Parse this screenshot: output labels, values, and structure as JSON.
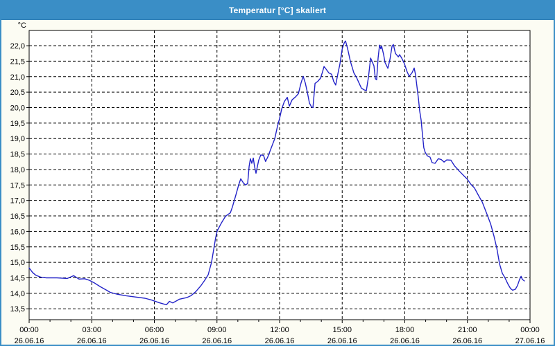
{
  "window": {
    "title": "Temperatur [°C] skaliert"
  },
  "colors": {
    "titlebar": "#3a8ec6",
    "window_border": "#3a8ec6",
    "panel_bg": "#fcfcf3",
    "plot_bg": "#ffffff",
    "grid": "#000000",
    "frame": "#000000",
    "line": "#2323c8",
    "text": "#000000"
  },
  "chart_data": {
    "type": "line",
    "title": "Temperatur [°C] skaliert",
    "ylabel": "°C",
    "xlabel": "",
    "grid": "dashed",
    "legend": "none",
    "ylim": [
      13.147,
      22.493
    ],
    "xlim_hours": [
      0,
      24
    ],
    "y_tick_labels": [
      "22,0",
      "21,5",
      "21,0",
      "20,5",
      "20,0",
      "19,5",
      "19,0",
      "18,5",
      "18,0",
      "17,5",
      "17,0",
      "16,5",
      "16,0",
      "15,5",
      "15,0",
      "14,5",
      "14,0",
      "13,5"
    ],
    "y_tick_values": [
      22.0,
      21.5,
      21.0,
      20.5,
      20.0,
      19.5,
      19.0,
      18.5,
      18.0,
      17.5,
      17.0,
      16.5,
      16.0,
      15.5,
      15.0,
      14.5,
      14.0,
      13.5
    ],
    "x_ticks": [
      {
        "hour": 0,
        "time": "00:00",
        "date": "26.06.16"
      },
      {
        "hour": 3,
        "time": "03:00",
        "date": "26.06.16"
      },
      {
        "hour": 6,
        "time": "06:00",
        "date": "26.06.16"
      },
      {
        "hour": 9,
        "time": "09:00",
        "date": "26.06.16"
      },
      {
        "hour": 12,
        "time": "12:00",
        "date": "26.06.16"
      },
      {
        "hour": 15,
        "time": "15:00",
        "date": "26.06.16"
      },
      {
        "hour": 18,
        "time": "18:00",
        "date": "26.06.16"
      },
      {
        "hour": 21,
        "time": "21:00",
        "date": "26.06.16"
      },
      {
        "hour": 24,
        "time": "00:00",
        "date": "27.06.16"
      }
    ],
    "series": [
      {
        "name": "Temperatur",
        "unit": "°C",
        "points": [
          [
            0.0,
            14.82
          ],
          [
            0.17,
            14.67
          ],
          [
            0.33,
            14.58
          ],
          [
            0.57,
            14.52
          ],
          [
            0.83,
            14.5
          ],
          [
            1.33,
            14.5
          ],
          [
            1.83,
            14.48
          ],
          [
            2.13,
            14.57
          ],
          [
            2.39,
            14.46
          ],
          [
            2.66,
            14.47
          ],
          [
            2.89,
            14.42
          ],
          [
            3.09,
            14.35
          ],
          [
            3.42,
            14.21
          ],
          [
            3.66,
            14.12
          ],
          [
            3.89,
            14.03
          ],
          [
            4.22,
            13.97
          ],
          [
            4.65,
            13.92
          ],
          [
            5.09,
            13.88
          ],
          [
            5.55,
            13.84
          ],
          [
            5.88,
            13.78
          ],
          [
            6.22,
            13.7
          ],
          [
            6.42,
            13.66
          ],
          [
            6.58,
            13.63
          ],
          [
            6.72,
            13.74
          ],
          [
            6.88,
            13.69
          ],
          [
            7.21,
            13.81
          ],
          [
            7.55,
            13.86
          ],
          [
            7.75,
            13.92
          ],
          [
            7.98,
            14.05
          ],
          [
            8.21,
            14.23
          ],
          [
            8.41,
            14.42
          ],
          [
            8.58,
            14.6
          ],
          [
            8.74,
            15.0
          ],
          [
            8.84,
            15.4
          ],
          [
            8.94,
            15.8
          ],
          [
            9.01,
            16.02
          ],
          [
            9.21,
            16.27
          ],
          [
            9.41,
            16.49
          ],
          [
            9.64,
            16.6
          ],
          [
            9.74,
            16.79
          ],
          [
            9.9,
            17.16
          ],
          [
            10.04,
            17.5
          ],
          [
            10.14,
            17.7
          ],
          [
            10.27,
            17.56
          ],
          [
            10.37,
            17.5
          ],
          [
            10.47,
            17.55
          ],
          [
            10.54,
            18.1
          ],
          [
            10.6,
            18.35
          ],
          [
            10.67,
            18.2
          ],
          [
            10.74,
            18.37
          ],
          [
            10.8,
            18.1
          ],
          [
            10.87,
            17.88
          ],
          [
            11.0,
            18.3
          ],
          [
            11.1,
            18.47
          ],
          [
            11.23,
            18.46
          ],
          [
            11.33,
            18.26
          ],
          [
            11.43,
            18.4
          ],
          [
            11.6,
            18.7
          ],
          [
            11.77,
            19.0
          ],
          [
            11.9,
            19.4
          ],
          [
            12.0,
            19.65
          ],
          [
            12.1,
            19.95
          ],
          [
            12.23,
            20.2
          ],
          [
            12.37,
            20.33
          ],
          [
            12.47,
            20.05
          ],
          [
            12.6,
            20.25
          ],
          [
            12.77,
            20.35
          ],
          [
            12.9,
            20.45
          ],
          [
            13.03,
            20.8
          ],
          [
            13.13,
            21.01
          ],
          [
            13.23,
            20.8
          ],
          [
            13.33,
            20.5
          ],
          [
            13.43,
            20.15
          ],
          [
            13.53,
            20.02
          ],
          [
            13.6,
            20.0
          ],
          [
            13.7,
            20.78
          ],
          [
            13.83,
            20.85
          ],
          [
            13.96,
            20.95
          ],
          [
            14.06,
            21.16
          ],
          [
            14.13,
            21.33
          ],
          [
            14.23,
            21.24
          ],
          [
            14.36,
            21.12
          ],
          [
            14.49,
            21.08
          ],
          [
            14.59,
            20.85
          ],
          [
            14.69,
            20.73
          ],
          [
            14.79,
            21.08
          ],
          [
            14.89,
            21.4
          ],
          [
            15.0,
            21.9
          ],
          [
            15.1,
            22.1
          ],
          [
            15.16,
            22.15
          ],
          [
            15.26,
            21.9
          ],
          [
            15.39,
            21.5
          ],
          [
            15.56,
            21.12
          ],
          [
            15.69,
            20.97
          ],
          [
            15.79,
            20.82
          ],
          [
            15.92,
            20.63
          ],
          [
            16.06,
            20.57
          ],
          [
            16.16,
            20.55
          ],
          [
            16.26,
            21.0
          ],
          [
            16.36,
            21.6
          ],
          [
            16.45,
            21.46
          ],
          [
            16.52,
            21.35
          ],
          [
            16.59,
            20.93
          ],
          [
            16.65,
            20.9
          ],
          [
            16.72,
            21.6
          ],
          [
            16.79,
            22.02
          ],
          [
            16.85,
            21.9
          ],
          [
            16.89,
            21.99
          ],
          [
            16.99,
            21.7
          ],
          [
            17.05,
            21.46
          ],
          [
            17.19,
            21.27
          ],
          [
            17.29,
            21.56
          ],
          [
            17.39,
            21.98
          ],
          [
            17.45,
            22.04
          ],
          [
            17.55,
            21.75
          ],
          [
            17.69,
            21.64
          ],
          [
            17.75,
            21.71
          ],
          [
            17.85,
            21.6
          ],
          [
            17.98,
            21.42
          ],
          [
            18.11,
            21.16
          ],
          [
            18.21,
            21.01
          ],
          [
            18.35,
            21.13
          ],
          [
            18.45,
            21.28
          ],
          [
            18.51,
            21.08
          ],
          [
            18.58,
            20.7
          ],
          [
            18.65,
            20.3
          ],
          [
            18.71,
            19.9
          ],
          [
            18.78,
            19.6
          ],
          [
            18.85,
            19.1
          ],
          [
            18.91,
            18.7
          ],
          [
            18.98,
            18.55
          ],
          [
            19.08,
            18.44
          ],
          [
            19.21,
            18.4
          ],
          [
            19.31,
            18.22
          ],
          [
            19.45,
            18.2
          ],
          [
            19.61,
            18.35
          ],
          [
            19.75,
            18.32
          ],
          [
            19.88,
            18.24
          ],
          [
            20.01,
            18.31
          ],
          [
            20.21,
            18.3
          ],
          [
            20.38,
            18.12
          ],
          [
            20.61,
            17.95
          ],
          [
            20.81,
            17.81
          ],
          [
            20.98,
            17.7
          ],
          [
            21.18,
            17.51
          ],
          [
            21.34,
            17.4
          ],
          [
            21.54,
            17.15
          ],
          [
            21.71,
            16.95
          ],
          [
            21.94,
            16.55
          ],
          [
            22.11,
            16.25
          ],
          [
            22.27,
            15.85
          ],
          [
            22.41,
            15.45
          ],
          [
            22.54,
            14.95
          ],
          [
            22.67,
            14.65
          ],
          [
            22.8,
            14.5
          ],
          [
            22.94,
            14.3
          ],
          [
            23.07,
            14.15
          ],
          [
            23.17,
            14.1
          ],
          [
            23.3,
            14.13
          ],
          [
            23.4,
            14.25
          ],
          [
            23.5,
            14.45
          ],
          [
            23.57,
            14.55
          ],
          [
            23.63,
            14.45
          ],
          [
            23.73,
            14.4
          ]
        ]
      }
    ]
  }
}
